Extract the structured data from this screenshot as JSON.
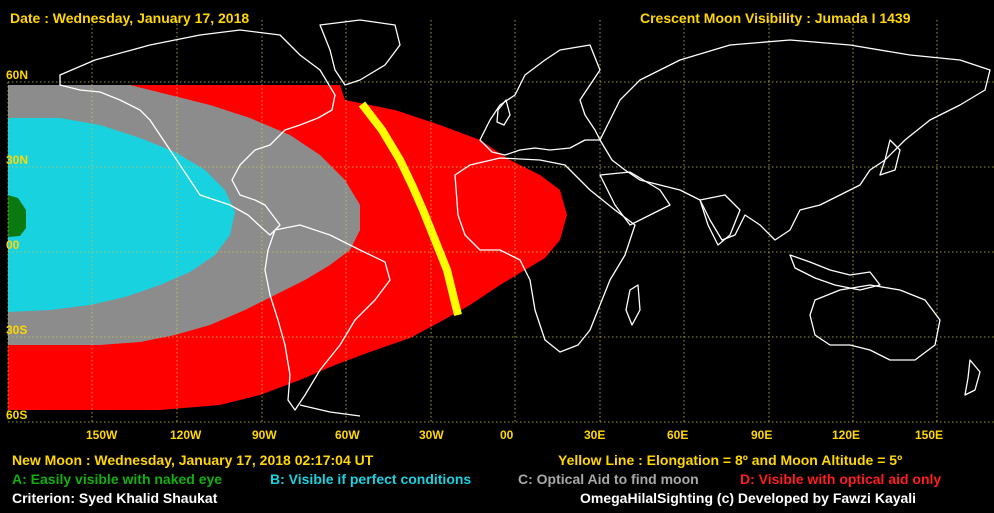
{
  "header": {
    "date": "Date : Wednesday, January 17, 2018",
    "title": "Crescent Moon Visibility : Jumada I  1439"
  },
  "lat_labels": [
    "60N",
    "30N",
    "00",
    "30S",
    "60S"
  ],
  "lon_labels": [
    "150W",
    "120W",
    "90W",
    "60W",
    "30W",
    "00",
    "30E",
    "60E",
    "90E",
    "120E",
    "150E"
  ],
  "footer": {
    "new_moon": "New Moon : Wednesday, January 17, 2018  02:17:04  UT",
    "yellow_line": "Yellow Line : Elongation = 8º  and Moon Altitude = 5º",
    "legend_a": "A: Easily visible with naked eye",
    "legend_b": "B: Visible if perfect conditions",
    "legend_c": "C: Optical Aid to find moon",
    "legend_d": "D: Visible with optical aid only",
    "criterion": "Criterion: Syed Khalid Shaukat",
    "credit": "OmegaHilalSighting  (c)  Developed by Fawzi Kayali"
  },
  "colors": {
    "zone_a": "#0a7a10",
    "zone_b": "#19d2e0",
    "zone_c": "#8c8c8c",
    "zone_d": "#ff0000",
    "yellow_line": "#ffff00",
    "grid": "#c8c850",
    "label": "#ffd700"
  }
}
